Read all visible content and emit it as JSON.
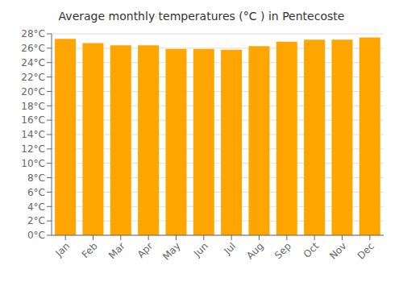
{
  "chart_data": {
    "type": "bar",
    "title": "Average monthly temperatures (°C ) in Pentecoste",
    "categories": [
      "Jan",
      "Feb",
      "Mar",
      "Apr",
      "May",
      "Jun",
      "Jul",
      "Aug",
      "Sep",
      "Oct",
      "Nov",
      "Dec"
    ],
    "values": [
      27.3,
      26.7,
      26.4,
      26.4,
      25.9,
      25.9,
      25.8,
      26.3,
      26.9,
      27.2,
      27.2,
      27.5
    ],
    "color": "#FFA500",
    "ylim": [
      0,
      28
    ],
    "yticks": [
      {
        "value": 0,
        "label": "0°C"
      },
      {
        "value": 2,
        "label": "2°C"
      },
      {
        "value": 4,
        "label": "4°C"
      },
      {
        "value": 6,
        "label": "6°C"
      },
      {
        "value": 8,
        "label": "8°C"
      },
      {
        "value": 10,
        "label": "10°C"
      },
      {
        "value": 12,
        "label": "12°C"
      },
      {
        "value": 14,
        "label": "14°C"
      },
      {
        "value": 16,
        "label": "16°C"
      },
      {
        "value": 18,
        "label": "18°C"
      },
      {
        "value": 20,
        "label": "20°C"
      },
      {
        "value": 22,
        "label": "22°C"
      },
      {
        "value": 24,
        "label": "24°C"
      },
      {
        "value": 26,
        "label": "26°C"
      },
      {
        "value": 28,
        "label": "28°C"
      }
    ],
    "grid": true
  }
}
